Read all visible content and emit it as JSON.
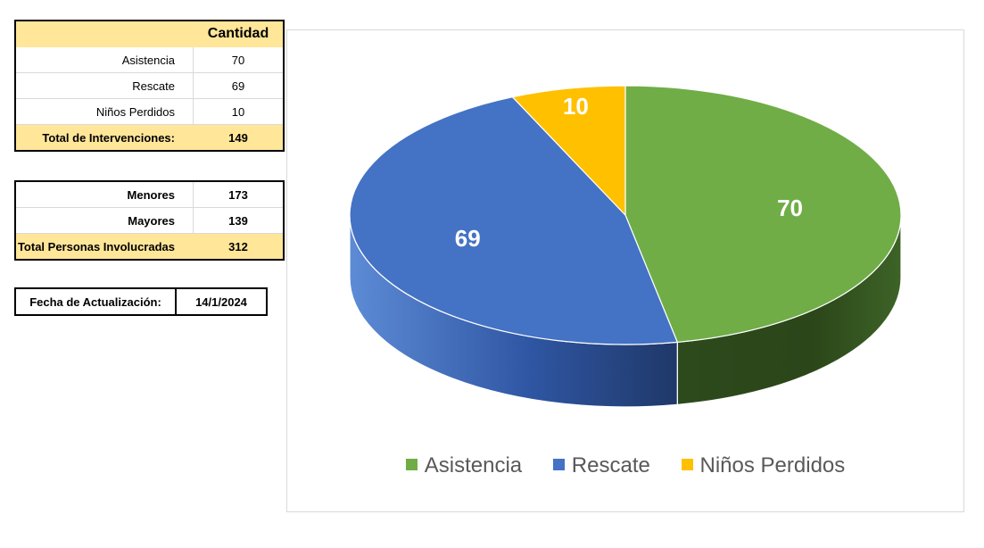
{
  "summary_table": {
    "header": "Cantidad",
    "rows": [
      {
        "label": "Asistencia",
        "value": "70"
      },
      {
        "label": "Rescate",
        "value": "69"
      },
      {
        "label": "Niños Perdidos",
        "value": "10"
      }
    ],
    "total": {
      "label": "Total de Intervenciones:",
      "value": "149"
    }
  },
  "people_table": {
    "rows": [
      {
        "label": "Menores",
        "value": "173"
      },
      {
        "label": "Mayores",
        "value": "139"
      }
    ],
    "total": {
      "label": "Total Personas Involucradas",
      "value": "312"
    }
  },
  "update": {
    "label": "Fecha de Actualización:",
    "value": "14/1/2024"
  },
  "chart_data": {
    "type": "pie",
    "style": "3d",
    "categories": [
      "Asistencia",
      "Rescate",
      "Niños Perdidos"
    ],
    "values": [
      70,
      69,
      10
    ],
    "data_labels": [
      "70",
      "69",
      "10"
    ],
    "colors": [
      "#70ad47",
      "#4472c4",
      "#ffc000"
    ],
    "legend_position": "bottom",
    "title": ""
  }
}
